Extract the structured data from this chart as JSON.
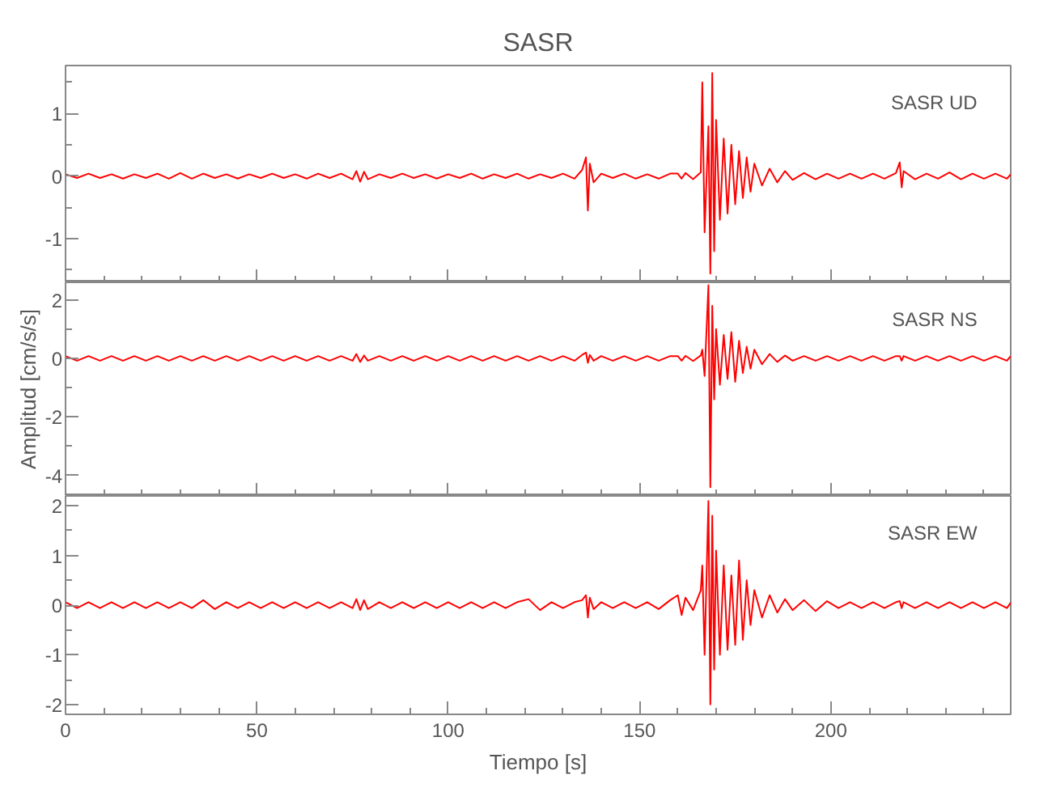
{
  "chart_data": [
    {
      "type": "line",
      "title": "SASR",
      "annotations": [
        "SASR   UD"
      ],
      "tick_labels": "y",
      "grid": false,
      "line_style": "solid",
      "marker": "none",
      "x": [
        0,
        3,
        6,
        9,
        12,
        15,
        18,
        21,
        24,
        27,
        30,
        33,
        36,
        39,
        42,
        45,
        48,
        51,
        54,
        57,
        60,
        63,
        66,
        69,
        72,
        75,
        76,
        77,
        78,
        79,
        82,
        85,
        88,
        91,
        94,
        97,
        100,
        103,
        106,
        109,
        112,
        115,
        118,
        121,
        124,
        127,
        130,
        133,
        135,
        136,
        136.5,
        137,
        138,
        140,
        143,
        146,
        149,
        152,
        155,
        158,
        160,
        161,
        162,
        164,
        166,
        166.4,
        167,
        168,
        168.5,
        169,
        169.5,
        170,
        171,
        172,
        173,
        174,
        175,
        176,
        177,
        178,
        179,
        180,
        182,
        184,
        186,
        188,
        190,
        193,
        196,
        199,
        202,
        205,
        208,
        211,
        214,
        217,
        218,
        218.5,
        219,
        222,
        225,
        228,
        231,
        234,
        237,
        240,
        243,
        246,
        247
      ],
      "xlim": [
        0,
        247
      ],
      "xticks": [
        0,
        {
          "value": 10,
          "label": null
        },
        {
          "value": 20,
          "label": null
        },
        {
          "value": 30,
          "label": null
        },
        {
          "value": 40,
          "label": null
        },
        50,
        {
          "value": 60,
          "label": null
        },
        {
          "value": 70,
          "label": null
        },
        {
          "value": 80,
          "label": null
        },
        {
          "value": 90,
          "label": null
        },
        100,
        {
          "value": 110,
          "label": null
        },
        {
          "value": 120,
          "label": null
        },
        {
          "value": 130,
          "label": null
        },
        {
          "value": 140,
          "label": null
        },
        150,
        {
          "value": 160,
          "label": null
        },
        {
          "value": 170,
          "label": null
        },
        {
          "value": 180,
          "label": null
        },
        {
          "value": 190,
          "label": null
        },
        200,
        {
          "value": 210,
          "label": null
        },
        {
          "value": 220,
          "label": null
        },
        {
          "value": 230,
          "label": null
        },
        {
          "value": 240,
          "label": null
        }
      ],
      "ylim": [
        -1.7,
        1.77
      ],
      "yticks": [
        {
          "value": -1.5,
          "label": null
        },
        -1,
        {
          "value": -0.5,
          "label": null
        },
        0,
        {
          "value": 0.5,
          "label": null
        },
        1,
        {
          "value": 1.5,
          "label": null
        }
      ],
      "series": [
        {
          "color": "#ff0000",
          "values": [
            0.03,
            -0.03,
            0.04,
            -0.03,
            0.03,
            -0.04,
            0.03,
            -0.03,
            0.04,
            -0.04,
            0.05,
            -0.04,
            0.04,
            -0.03,
            0.03,
            -0.04,
            0.03,
            -0.03,
            0.04,
            -0.03,
            0.03,
            -0.04,
            0.04,
            -0.03,
            0.04,
            -0.05,
            0.08,
            -0.09,
            0.07,
            -0.05,
            0.03,
            -0.03,
            0.04,
            -0.03,
            0.03,
            -0.04,
            0.03,
            -0.03,
            0.04,
            -0.04,
            0.03,
            -0.03,
            0.04,
            -0.04,
            0.03,
            -0.03,
            0.04,
            -0.04,
            0.1,
            0.3,
            -0.55,
            0.2,
            -0.1,
            0.04,
            -0.03,
            0.04,
            -0.04,
            0.03,
            -0.04,
            0.04,
            0.04,
            -0.04,
            0.05,
            -0.05,
            0.06,
            1.5,
            -0.9,
            0.8,
            -1.56,
            1.65,
            -1.2,
            0.9,
            -0.7,
            0.6,
            -0.6,
            0.5,
            -0.45,
            0.4,
            -0.35,
            0.3,
            -0.25,
            0.2,
            -0.15,
            0.12,
            -0.1,
            0.08,
            -0.06,
            0.05,
            -0.05,
            0.04,
            -0.04,
            0.04,
            -0.04,
            0.04,
            -0.04,
            0.05,
            0.22,
            -0.18,
            0.08,
            -0.05,
            0.04,
            -0.04,
            0.06,
            -0.05,
            0.04,
            -0.04,
            0.04,
            -0.04,
            0.03
          ]
        }
      ]
    },
    {
      "type": "line",
      "ylabel": "Amplitud [cm/s/s]",
      "annotations": [
        "SASR   NS"
      ],
      "tick_labels": "y",
      "grid": false,
      "line_style": "solid",
      "marker": "none",
      "x": [
        0,
        3,
        6,
        9,
        12,
        15,
        18,
        21,
        24,
        27,
        30,
        33,
        36,
        39,
        42,
        45,
        48,
        51,
        54,
        57,
        60,
        63,
        66,
        69,
        72,
        75,
        76,
        77,
        78,
        79,
        82,
        85,
        88,
        91,
        94,
        97,
        100,
        103,
        106,
        109,
        112,
        115,
        118,
        121,
        124,
        127,
        130,
        133,
        135,
        136,
        136.5,
        137,
        138,
        140,
        143,
        146,
        149,
        152,
        155,
        158,
        160,
        161,
        162,
        164,
        166,
        166.4,
        167,
        168,
        168.5,
        169,
        169.5,
        170,
        171,
        172,
        173,
        174,
        175,
        176,
        177,
        178,
        179,
        180,
        182,
        184,
        186,
        188,
        190,
        193,
        196,
        199,
        202,
        205,
        208,
        211,
        214,
        217,
        218,
        218.5,
        219,
        222,
        225,
        228,
        231,
        234,
        237,
        240,
        243,
        246,
        247
      ],
      "xlim": [
        0,
        247
      ],
      "xticks": [
        0,
        {
          "value": 10,
          "label": null
        },
        {
          "value": 20,
          "label": null
        },
        {
          "value": 30,
          "label": null
        },
        {
          "value": 40,
          "label": null
        },
        50,
        {
          "value": 60,
          "label": null
        },
        {
          "value": 70,
          "label": null
        },
        {
          "value": 80,
          "label": null
        },
        {
          "value": 90,
          "label": null
        },
        100,
        {
          "value": 110,
          "label": null
        },
        {
          "value": 120,
          "label": null
        },
        {
          "value": 130,
          "label": null
        },
        {
          "value": 140,
          "label": null
        },
        150,
        {
          "value": 160,
          "label": null
        },
        {
          "value": 170,
          "label": null
        },
        {
          "value": 180,
          "label": null
        },
        {
          "value": 190,
          "label": null
        },
        200,
        {
          "value": 210,
          "label": null
        },
        {
          "value": 220,
          "label": null
        },
        {
          "value": 230,
          "label": null
        },
        {
          "value": 240,
          "label": null
        }
      ],
      "ylim": [
        -4.7,
        2.6
      ],
      "yticks": [
        -4,
        {
          "value": -3,
          "label": null
        },
        -2,
        {
          "value": -1,
          "label": null
        },
        0,
        {
          "value": 1,
          "label": null
        },
        2
      ],
      "series": [
        {
          "color": "#ff0000",
          "values": [
            0.08,
            -0.08,
            0.08,
            -0.08,
            0.08,
            -0.08,
            0.08,
            -0.08,
            0.08,
            -0.08,
            0.08,
            -0.08,
            0.08,
            -0.08,
            0.08,
            -0.08,
            0.08,
            -0.08,
            0.08,
            -0.08,
            0.08,
            -0.08,
            0.08,
            -0.08,
            0.08,
            -0.08,
            0.15,
            -0.12,
            0.1,
            -0.08,
            0.08,
            -0.08,
            0.08,
            -0.08,
            0.08,
            -0.08,
            0.08,
            -0.08,
            0.08,
            -0.08,
            0.08,
            -0.08,
            0.08,
            -0.08,
            0.08,
            -0.08,
            0.08,
            -0.08,
            0.12,
            0.2,
            -0.15,
            0.12,
            -0.08,
            0.08,
            -0.08,
            0.08,
            -0.08,
            0.08,
            -0.08,
            0.08,
            0.08,
            -0.08,
            0.09,
            -0.09,
            0.1,
            0.3,
            -0.6,
            2.5,
            -4.4,
            1.8,
            -1.4,
            1.0,
            -0.9,
            0.8,
            -0.7,
            0.9,
            -0.8,
            0.6,
            -0.5,
            0.4,
            -0.35,
            0.3,
            -0.2,
            0.15,
            -0.12,
            0.1,
            -0.08,
            0.08,
            -0.08,
            0.08,
            -0.08,
            0.08,
            -0.08,
            0.08,
            -0.08,
            0.08,
            0.08,
            -0.08,
            0.08,
            -0.08,
            0.08,
            -0.08,
            0.08,
            -0.08,
            0.08,
            -0.08,
            0.08,
            -0.08,
            0.08
          ]
        }
      ]
    },
    {
      "type": "line",
      "xlabel": "Tiempo [s]",
      "annotations": [
        "SASR   EW"
      ],
      "grid": false,
      "line_style": "solid",
      "marker": "none",
      "x": [
        0,
        3,
        6,
        9,
        12,
        15,
        18,
        21,
        24,
        27,
        30,
        33,
        36,
        39,
        42,
        45,
        48,
        51,
        54,
        57,
        60,
        63,
        66,
        69,
        72,
        75,
        76,
        77,
        78,
        79,
        82,
        85,
        88,
        91,
        94,
        97,
        100,
        103,
        106,
        109,
        112,
        115,
        118,
        121,
        124,
        127,
        130,
        133,
        135,
        136,
        136.5,
        137,
        138,
        140,
        143,
        146,
        149,
        152,
        155,
        158,
        160,
        161,
        162,
        164,
        166,
        166.4,
        167,
        168,
        168.5,
        169,
        169.5,
        170,
        171,
        172,
        173,
        174,
        175,
        176,
        177,
        178,
        179,
        180,
        182,
        184,
        186,
        188,
        190,
        193,
        196,
        199,
        202,
        205,
        208,
        211,
        214,
        217,
        218,
        218.5,
        219,
        222,
        225,
        228,
        231,
        234,
        237,
        240,
        243,
        246,
        247
      ],
      "xlim": [
        0,
        247
      ],
      "xticks": [
        0,
        {
          "value": 10,
          "label": null
        },
        {
          "value": 20,
          "label": null
        },
        {
          "value": 30,
          "label": null
        },
        {
          "value": 40,
          "label": null
        },
        50,
        {
          "value": 60,
          "label": null
        },
        {
          "value": 70,
          "label": null
        },
        {
          "value": 80,
          "label": null
        },
        {
          "value": 90,
          "label": null
        },
        100,
        {
          "value": 110,
          "label": null
        },
        {
          "value": 120,
          "label": null
        },
        {
          "value": 130,
          "label": null
        },
        {
          "value": 140,
          "label": null
        },
        150,
        {
          "value": 160,
          "label": null
        },
        {
          "value": 170,
          "label": null
        },
        {
          "value": 180,
          "label": null
        },
        {
          "value": 190,
          "label": null
        },
        200,
        {
          "value": 210,
          "label": null
        },
        {
          "value": 220,
          "label": null
        },
        {
          "value": 230,
          "label": null
        },
        {
          "value": 240,
          "label": null
        }
      ],
      "ylim": [
        -2.2,
        2.2
      ],
      "yticks": [
        -2,
        {
          "value": -1.5,
          "label": null
        },
        -1,
        {
          "value": -0.5,
          "label": null
        },
        0,
        {
          "value": 0.5,
          "label": null
        },
        1,
        {
          "value": 1.5,
          "label": null
        },
        2
      ],
      "series": [
        {
          "color": "#ff0000",
          "values": [
            0.06,
            -0.06,
            0.06,
            -0.06,
            0.06,
            -0.06,
            0.06,
            -0.06,
            0.06,
            -0.06,
            0.06,
            -0.06,
            0.1,
            -0.08,
            0.06,
            -0.06,
            0.06,
            -0.06,
            0.06,
            -0.06,
            0.06,
            -0.06,
            0.06,
            -0.06,
            0.06,
            -0.06,
            0.12,
            -0.1,
            0.1,
            -0.08,
            0.06,
            -0.06,
            0.06,
            -0.06,
            0.06,
            -0.06,
            0.06,
            -0.06,
            0.06,
            -0.06,
            0.06,
            -0.06,
            0.06,
            0.12,
            -0.1,
            0.06,
            -0.06,
            0.06,
            0.1,
            0.2,
            -0.25,
            0.15,
            -0.08,
            0.06,
            -0.06,
            0.06,
            -0.06,
            0.06,
            -0.08,
            0.1,
            0.2,
            -0.2,
            0.15,
            -0.1,
            0.3,
            0.8,
            -1.0,
            2.1,
            -2.0,
            1.8,
            -1.3,
            1.1,
            -1.0,
            0.8,
            -0.9,
            0.6,
            -0.8,
            0.9,
            -0.7,
            0.5,
            -0.4,
            0.3,
            -0.25,
            0.2,
            -0.15,
            0.12,
            -0.1,
            0.1,
            -0.12,
            0.08,
            -0.06,
            0.06,
            -0.06,
            0.06,
            -0.06,
            0.06,
            0.08,
            -0.06,
            0.06,
            -0.06,
            0.06,
            -0.06,
            0.06,
            -0.06,
            0.06,
            -0.06,
            0.06,
            -0.06,
            0.05
          ]
        }
      ]
    }
  ]
}
